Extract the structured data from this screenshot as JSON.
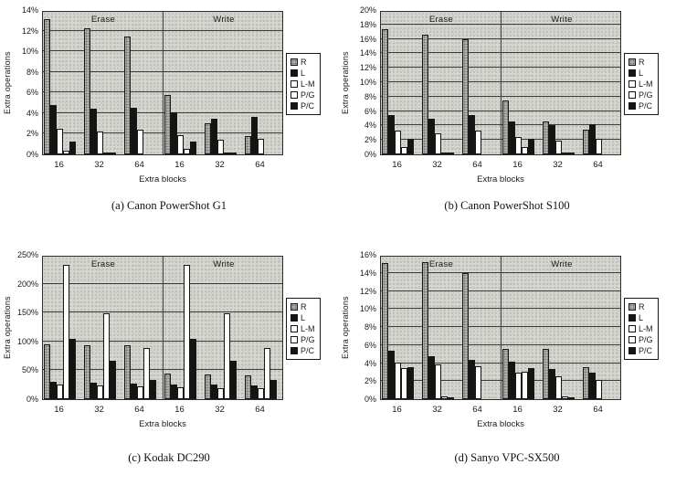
{
  "figure": {
    "background": "#ffffff",
    "text_color": "#1a1a1a",
    "plot_background": "#d6d6d1",
    "bar_gray": "#b2b2ad",
    "bar_black": "#141414",
    "bar_white": "#fdfdfb"
  },
  "chart_data": [
    {
      "type": "bar",
      "title": "(a) Canon PowerShot G1",
      "ylabel": "Extra operations",
      "xlabel": "Extra blocks",
      "section_labels": [
        "Erase",
        "Write"
      ],
      "categories": [
        "16",
        "32",
        "64",
        "16",
        "32",
        "64"
      ],
      "ylim": [
        0,
        14
      ],
      "yticks": [
        "0%",
        "2%",
        "4%",
        "6%",
        "8%",
        "10%",
        "12%",
        "14%"
      ],
      "grid": "horizontal",
      "legend_position": "right",
      "legend": [
        "R",
        "L",
        "L-M",
        "P/G",
        "P/C"
      ],
      "series": [
        {
          "name": "R",
          "values": [
            13.1,
            12.2,
            11.4,
            5.8,
            3.0,
            1.8
          ]
        },
        {
          "name": "L",
          "values": [
            4.8,
            4.4,
            4.5,
            4.1,
            3.5,
            3.6
          ]
        },
        {
          "name": "L-M",
          "values": [
            2.5,
            2.2,
            2.4,
            1.9,
            1.4,
            1.55
          ]
        },
        {
          "name": "P/G",
          "values": [
            0.4,
            0.1,
            0,
            0.5,
            0.1,
            0
          ]
        },
        {
          "name": "P/C",
          "values": [
            1.2,
            0.1,
            0,
            1.2,
            0.1,
            0
          ]
        }
      ]
    },
    {
      "type": "bar",
      "title": "(b) Canon PowerShot S100",
      "ylabel": "Extra operations",
      "xlabel": "Extra blocks",
      "section_labels": [
        "Erase",
        "Write"
      ],
      "categories": [
        "16",
        "32",
        "64",
        "16",
        "32",
        "64"
      ],
      "ylim": [
        0,
        20
      ],
      "yticks": [
        "0%",
        "2%",
        "4%",
        "6%",
        "8%",
        "10%",
        "12%",
        "14%",
        "16%",
        "18%",
        "20%"
      ],
      "grid": "horizontal",
      "legend_position": "right",
      "legend": [
        "R",
        "L",
        "L-M",
        "P/G",
        "P/C"
      ],
      "series": [
        {
          "name": "R",
          "values": [
            17.4,
            16.6,
            16.0,
            7.5,
            4.6,
            3.4
          ]
        },
        {
          "name": "L",
          "values": [
            5.5,
            5.0,
            5.4,
            4.6,
            4.0,
            4.2
          ]
        },
        {
          "name": "L-M",
          "values": [
            3.3,
            2.9,
            3.3,
            2.4,
            1.9,
            2.1
          ]
        },
        {
          "name": "P/G",
          "values": [
            1.0,
            0.15,
            0,
            1.0,
            0.1,
            0
          ]
        },
        {
          "name": "P/C",
          "values": [
            2.1,
            0.15,
            0,
            2.1,
            0.2,
            0
          ]
        }
      ]
    },
    {
      "type": "bar",
      "title": "(c) Kodak DC290",
      "ylabel": "Extra operations",
      "xlabel": "Extra blocks",
      "section_labels": [
        "Erase",
        "Write"
      ],
      "categories": [
        "16",
        "32",
        "64",
        "16",
        "32",
        "64"
      ],
      "ylim": [
        0,
        250
      ],
      "yticks": [
        "0%",
        "50%",
        "100%",
        "150%",
        "200%",
        "250%"
      ],
      "grid": "horizontal",
      "legend_position": "right",
      "legend": [
        "R",
        "L",
        "L-M",
        "P/G",
        "P/C"
      ],
      "series": [
        {
          "name": "R",
          "values": [
            95,
            93,
            93,
            45,
            42,
            41
          ]
        },
        {
          "name": "L",
          "values": [
            30,
            28,
            27,
            25,
            25,
            23
          ]
        },
        {
          "name": "L-M",
          "values": [
            25,
            23,
            22,
            20,
            19,
            19
          ]
        },
        {
          "name": "P/G",
          "values": [
            232,
            148,
            88,
            232,
            148,
            88
          ]
        },
        {
          "name": "P/C",
          "values": [
            104,
            66,
            33,
            104,
            66,
            34
          ]
        }
      ]
    },
    {
      "type": "bar",
      "title": "(d) Sanyo VPC-SX500",
      "ylabel": "Extra operations",
      "xlabel": "Extra blocks",
      "section_labels": [
        "Erase",
        "Write"
      ],
      "categories": [
        "16",
        "32",
        "64",
        "16",
        "32",
        "64"
      ],
      "ylim": [
        0,
        16
      ],
      "yticks": [
        "0%",
        "2%",
        "4%",
        "6%",
        "8%",
        "10%",
        "12%",
        "14%",
        "16%"
      ],
      "grid": "horizontal",
      "legend_position": "right",
      "legend": [
        "R",
        "L",
        "L-M",
        "P/G",
        "P/C"
      ],
      "series": [
        {
          "name": "R",
          "values": [
            15.1,
            15.2,
            14.0,
            5.6,
            5.6,
            3.5
          ]
        },
        {
          "name": "L",
          "values": [
            5.4,
            4.8,
            4.4,
            4.2,
            3.3,
            2.9
          ]
        },
        {
          "name": "L-M",
          "values": [
            4.1,
            3.9,
            3.6,
            2.9,
            2.5,
            2.1
          ]
        },
        {
          "name": "P/G",
          "values": [
            3.4,
            0.3,
            0,
            3.0,
            0.3,
            0
          ]
        },
        {
          "name": "P/C",
          "values": [
            3.5,
            0.25,
            0,
            3.4,
            0.25,
            0
          ]
        }
      ]
    }
  ]
}
